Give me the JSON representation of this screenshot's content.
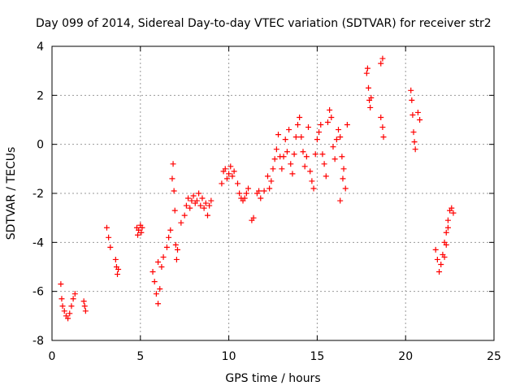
{
  "chart_data": {
    "type": "scatter",
    "title": "Day 099 of 2014, Sidereal Day-to-day VTEC variation (SDTVAR) for receiver str2",
    "xlabel": "GPS time / hours",
    "ylabel": "SDTVAR / TECUs",
    "xlim": [
      0,
      25
    ],
    "ylim": [
      -8,
      4
    ],
    "xticks": [
      0,
      5,
      10,
      15,
      20,
      25
    ],
    "yticks": [
      -8,
      -6,
      -4,
      -2,
      0,
      2,
      4
    ],
    "xtick_labels": [
      "0",
      "5",
      "10",
      "15",
      "20",
      "25"
    ],
    "ytick_labels": [
      "-8",
      "-6",
      "-4",
      "-2",
      "0",
      "2",
      "4"
    ],
    "grid": true,
    "marker": "plus",
    "color": "#ff0000",
    "series": [
      {
        "name": "SDTVAR",
        "points": [
          [
            0.5,
            -5.7
          ],
          [
            0.55,
            -6.3
          ],
          [
            0.6,
            -6.6
          ],
          [
            0.7,
            -6.8
          ],
          [
            0.8,
            -7.0
          ],
          [
            0.9,
            -7.1
          ],
          [
            1.0,
            -6.9
          ],
          [
            1.1,
            -6.6
          ],
          [
            1.2,
            -6.3
          ],
          [
            1.3,
            -6.1
          ],
          [
            1.8,
            -6.4
          ],
          [
            1.85,
            -6.6
          ],
          [
            1.9,
            -6.8
          ],
          [
            3.1,
            -3.4
          ],
          [
            3.2,
            -3.8
          ],
          [
            3.3,
            -4.2
          ],
          [
            3.6,
            -4.7
          ],
          [
            3.65,
            -5.0
          ],
          [
            3.7,
            -5.3
          ],
          [
            3.75,
            -5.1
          ],
          [
            4.8,
            -3.4
          ],
          [
            4.85,
            -3.7
          ],
          [
            4.9,
            -3.5
          ],
          [
            5.0,
            -3.3
          ],
          [
            5.05,
            -3.6
          ],
          [
            5.1,
            -3.4
          ],
          [
            5.7,
            -5.2
          ],
          [
            5.8,
            -5.6
          ],
          [
            5.9,
            -6.1
          ],
          [
            6.0,
            -6.5
          ],
          [
            6.1,
            -5.9
          ],
          [
            6.2,
            -5.0
          ],
          [
            6.3,
            -4.6
          ],
          [
            6.0,
            -4.8
          ],
          [
            6.5,
            -4.2
          ],
          [
            6.6,
            -3.8
          ],
          [
            6.7,
            -3.5
          ],
          [
            6.8,
            -1.4
          ],
          [
            6.85,
            -0.8
          ],
          [
            6.9,
            -1.9
          ],
          [
            6.95,
            -2.7
          ],
          [
            7.0,
            -4.1
          ],
          [
            7.05,
            -4.7
          ],
          [
            7.1,
            -4.3
          ],
          [
            7.3,
            -3.2
          ],
          [
            7.5,
            -2.9
          ],
          [
            7.6,
            -2.5
          ],
          [
            7.7,
            -2.2
          ],
          [
            7.8,
            -2.6
          ],
          [
            7.9,
            -2.3
          ],
          [
            8.0,
            -2.1
          ],
          [
            8.1,
            -2.4
          ],
          [
            8.2,
            -2.3
          ],
          [
            8.3,
            -2.0
          ],
          [
            8.4,
            -2.5
          ],
          [
            8.5,
            -2.2
          ],
          [
            8.6,
            -2.6
          ],
          [
            8.7,
            -2.4
          ],
          [
            8.8,
            -2.9
          ],
          [
            8.9,
            -2.5
          ],
          [
            9.0,
            -2.3
          ],
          [
            9.6,
            -1.6
          ],
          [
            9.7,
            -1.1
          ],
          [
            9.8,
            -1.0
          ],
          [
            9.9,
            -1.4
          ],
          [
            10.0,
            -1.2
          ],
          [
            10.1,
            -0.9
          ],
          [
            10.2,
            -1.3
          ],
          [
            10.3,
            -1.1
          ],
          [
            10.5,
            -1.6
          ],
          [
            10.6,
            -2.0
          ],
          [
            10.7,
            -2.2
          ],
          [
            10.8,
            -2.3
          ],
          [
            10.9,
            -2.2
          ],
          [
            11.0,
            -2.0
          ],
          [
            11.1,
            -1.8
          ],
          [
            11.3,
            -3.1
          ],
          [
            11.4,
            -3.0
          ],
          [
            11.6,
            -2.0
          ],
          [
            11.7,
            -1.9
          ],
          [
            11.8,
            -2.2
          ],
          [
            12.0,
            -1.9
          ],
          [
            12.2,
            -1.3
          ],
          [
            12.3,
            -1.8
          ],
          [
            12.4,
            -1.5
          ],
          [
            12.5,
            -1.0
          ],
          [
            12.6,
            -0.6
          ],
          [
            12.7,
            -0.2
          ],
          [
            12.8,
            0.4
          ],
          [
            12.9,
            -0.5
          ],
          [
            13.0,
            -1.0
          ],
          [
            13.1,
            -0.5
          ],
          [
            13.2,
            0.2
          ],
          [
            13.3,
            -0.3
          ],
          [
            13.4,
            0.6
          ],
          [
            13.5,
            -0.8
          ],
          [
            13.6,
            -1.2
          ],
          [
            13.7,
            -0.4
          ],
          [
            13.8,
            0.3
          ],
          [
            13.9,
            0.8
          ],
          [
            14.0,
            1.1
          ],
          [
            14.1,
            0.3
          ],
          [
            14.2,
            -0.3
          ],
          [
            14.3,
            -0.9
          ],
          [
            14.4,
            -0.5
          ],
          [
            14.5,
            0.7
          ],
          [
            14.6,
            -1.1
          ],
          [
            14.7,
            -1.5
          ],
          [
            14.8,
            -1.8
          ],
          [
            14.9,
            -0.4
          ],
          [
            15.0,
            0.2
          ],
          [
            15.1,
            0.5
          ],
          [
            15.2,
            0.8
          ],
          [
            15.3,
            -0.4
          ],
          [
            15.4,
            -0.8
          ],
          [
            15.5,
            -1.3
          ],
          [
            15.6,
            0.9
          ],
          [
            15.7,
            1.4
          ],
          [
            15.8,
            1.1
          ],
          [
            15.9,
            -0.1
          ],
          [
            16.0,
            -0.6
          ],
          [
            16.1,
            0.2
          ],
          [
            16.2,
            0.6
          ],
          [
            16.3,
            0.3
          ],
          [
            16.4,
            -0.5
          ],
          [
            16.5,
            -1.0
          ],
          [
            16.6,
            -1.8
          ],
          [
            16.3,
            -2.3
          ],
          [
            16.45,
            -1.4
          ],
          [
            16.7,
            0.8
          ],
          [
            17.8,
            2.9
          ],
          [
            17.85,
            3.1
          ],
          [
            17.9,
            2.3
          ],
          [
            17.95,
            1.8
          ],
          [
            18.0,
            1.5
          ],
          [
            18.05,
            1.9
          ],
          [
            18.6,
            3.3
          ],
          [
            18.7,
            3.5
          ],
          [
            18.6,
            1.1
          ],
          [
            18.7,
            0.7
          ],
          [
            18.75,
            0.3
          ],
          [
            20.3,
            2.2
          ],
          [
            20.35,
            1.8
          ],
          [
            20.4,
            1.2
          ],
          [
            20.45,
            0.5
          ],
          [
            20.5,
            0.1
          ],
          [
            20.55,
            -0.2
          ],
          [
            20.7,
            1.3
          ],
          [
            20.8,
            1.0
          ],
          [
            21.7,
            -4.3
          ],
          [
            21.8,
            -4.7
          ],
          [
            21.9,
            -5.2
          ],
          [
            22.0,
            -4.9
          ],
          [
            22.1,
            -4.5
          ],
          [
            22.2,
            -4.0
          ],
          [
            22.3,
            -3.6
          ],
          [
            22.4,
            -3.1
          ],
          [
            22.5,
            -2.7
          ],
          [
            22.6,
            -2.6
          ],
          [
            22.7,
            -2.8
          ],
          [
            22.4,
            -3.4
          ],
          [
            22.3,
            -4.1
          ],
          [
            22.2,
            -4.6
          ]
        ]
      }
    ]
  }
}
